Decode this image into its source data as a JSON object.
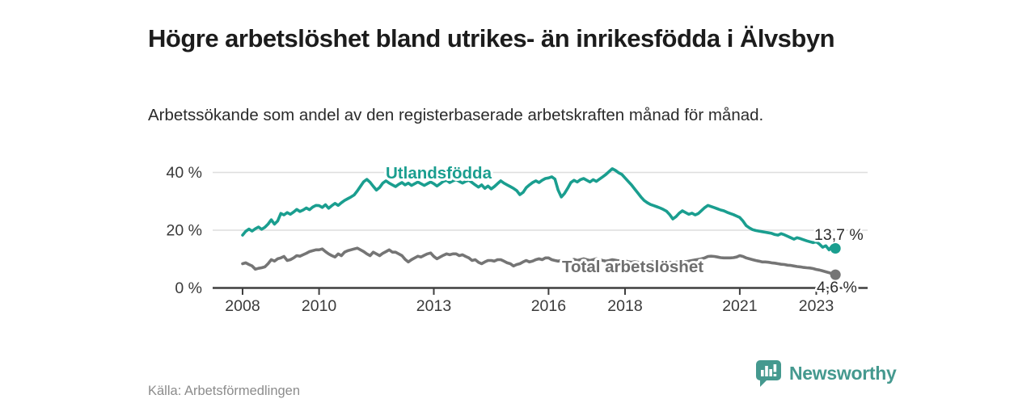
{
  "header": {
    "title": "Högre arbetslöshet bland utrikes- än inrikesfödda i Älvsbyn",
    "subtitle": "Arbetssökande som andel av den registerbaserade arbetskraften månad för månad."
  },
  "footer": {
    "source": "Källa: Arbetsförmedlingen",
    "brand": "Newsworthy"
  },
  "colors": {
    "accent_teal": "#1a9e8f",
    "line_gray": "#757575",
    "brand_teal": "#45998f"
  },
  "chart_data": {
    "type": "line",
    "title": "Högre arbetslöshet bland utrikes- än inrikesfödda i Älvsbyn",
    "subtitle": "Arbetssökande som andel av den registerbaserade arbetskraften månad för månad.",
    "xlabel": "",
    "ylabel": "",
    "x_start": "2008-01",
    "x_end": "2023-07",
    "frequency": "monthly",
    "x_ticks": [
      2008,
      2010,
      2013,
      2016,
      2018,
      2021,
      2023
    ],
    "y_ticks": [
      0,
      20,
      40
    ],
    "y_tick_labels": [
      "0 %",
      "20 %",
      "40 %"
    ],
    "ylim": [
      0,
      44
    ],
    "grid": "horizontal",
    "legend_position": "inline-labels",
    "series": [
      {
        "name": "Utlandsfödda",
        "color": "#1a9e8f",
        "end_label": "13,7 %",
        "end_value": 13.7,
        "values": [
          18.3,
          19.6,
          20.4,
          19.7,
          20.5,
          21.1,
          20.3,
          21.0,
          22.1,
          23.6,
          22.1,
          23.2,
          25.8,
          25.3,
          26.1,
          25.5,
          26.3,
          27.2,
          26.5,
          27.0,
          27.7,
          27.1,
          28.0,
          28.6,
          28.5,
          27.9,
          28.8,
          27.6,
          28.5,
          29.3,
          28.6,
          29.5,
          30.3,
          30.9,
          31.5,
          32.2,
          33.6,
          35.2,
          36.8,
          37.6,
          36.6,
          35.2,
          33.9,
          34.8,
          36.3,
          37.1,
          36.3,
          35.7,
          35.1,
          35.9,
          36.5,
          35.7,
          36.3,
          35.5,
          36.1,
          36.7,
          36.1,
          35.5,
          36.1,
          36.7,
          36.1,
          35.3,
          36.1,
          36.9,
          37.3,
          36.5,
          37.1,
          37.5,
          36.9,
          36.3,
          36.9,
          37.3,
          36.5,
          35.7,
          34.9,
          35.7,
          34.5,
          35.3,
          34.3,
          35.1,
          36.1,
          37.1,
          36.3,
          35.7,
          35.1,
          34.5,
          33.7,
          32.3,
          33.1,
          34.7,
          35.7,
          36.5,
          37.1,
          36.5,
          37.3,
          37.9,
          38.1,
          38.5,
          37.7,
          33.9,
          31.5,
          32.7,
          34.5,
          36.5,
          37.3,
          36.7,
          37.5,
          37.9,
          37.3,
          36.7,
          37.5,
          36.9,
          37.7,
          38.5,
          39.3,
          40.3,
          41.3,
          40.7,
          39.9,
          39.3,
          38.1,
          36.9,
          35.7,
          34.3,
          32.9,
          31.5,
          30.3,
          29.5,
          28.9,
          28.5,
          28.1,
          27.7,
          27.2,
          26.6,
          25.4,
          23.9,
          24.7,
          25.9,
          26.7,
          26.1,
          25.5,
          25.9,
          25.3,
          25.8,
          26.8,
          27.8,
          28.6,
          28.2,
          27.8,
          27.4,
          27.0,
          26.7,
          26.2,
          25.8,
          25.4,
          24.9,
          24.4,
          23.2,
          21.6,
          20.8,
          20.2,
          19.9,
          19.7,
          19.5,
          19.3,
          19.1,
          18.9,
          18.5,
          18.3,
          18.8,
          18.4,
          17.9,
          17.4,
          16.9,
          17.4,
          17.1,
          16.7,
          16.3,
          16.0,
          15.7,
          16.0,
          15.2,
          14.1,
          14.6,
          13.2,
          14.6,
          13.7
        ]
      },
      {
        "name": "Total arbetslöshet",
        "color": "#757575",
        "end_label": "4,6 %",
        "end_value": 4.6,
        "values": [
          8.4,
          8.7,
          8.1,
          7.6,
          6.5,
          6.8,
          7.0,
          7.3,
          8.4,
          9.8,
          9.3,
          10.1,
          10.4,
          10.9,
          9.5,
          9.8,
          10.4,
          11.2,
          11.0,
          11.5,
          12.0,
          12.6,
          12.9,
          13.2,
          13.2,
          13.5,
          12.6,
          11.8,
          11.2,
          10.7,
          11.8,
          11.2,
          12.4,
          12.9,
          13.2,
          13.5,
          13.8,
          13.2,
          12.6,
          11.8,
          11.2,
          12.4,
          11.8,
          11.2,
          12.0,
          12.6,
          13.2,
          12.4,
          12.4,
          11.8,
          11.2,
          9.9,
          9.0,
          9.8,
          10.4,
          11.0,
          10.7,
          11.3,
          11.8,
          12.1,
          10.9,
          10.1,
          10.7,
          11.3,
          11.8,
          11.5,
          11.8,
          11.8,
          11.2,
          11.5,
          10.9,
          10.4,
          9.5,
          9.8,
          8.9,
          8.4,
          9.0,
          9.5,
          9.5,
          9.3,
          9.8,
          9.8,
          9.3,
          8.7,
          8.4,
          7.6,
          8.1,
          8.4,
          9.0,
          9.5,
          9.0,
          9.3,
          9.8,
          10.1,
          9.8,
          10.4,
          10.4,
          9.8,
          9.5,
          9.3,
          9.5,
          9.0,
          9.3,
          9.6,
          9.9,
          9.5,
          9.8,
          10.1,
          9.8,
          9.5,
          9.8,
          10.1,
          9.8,
          9.5,
          9.3,
          9.5,
          9.8,
          9.6,
          9.4,
          9.6,
          9.4,
          9.1,
          8.9,
          9.1,
          8.9,
          8.7,
          8.9,
          8.7,
          8.9,
          9.1,
          8.9,
          9.1,
          8.9,
          8.7,
          8.9,
          8.7,
          8.9,
          9.1,
          9.3,
          9.1,
          9.3,
          9.5,
          9.7,
          9.9,
          10.1,
          10.4,
          10.9,
          11.0,
          10.9,
          10.7,
          10.5,
          10.4,
          10.4,
          10.4,
          10.5,
          10.7,
          11.2,
          10.9,
          10.4,
          10.1,
          9.8,
          9.5,
          9.3,
          9.0,
          9.0,
          8.9,
          8.7,
          8.6,
          8.4,
          8.2,
          8.1,
          7.9,
          7.8,
          7.6,
          7.4,
          7.3,
          7.1,
          7.0,
          6.9,
          6.7,
          6.4,
          6.2,
          5.9,
          5.6,
          5.3,
          4.9,
          4.6
        ]
      }
    ]
  }
}
